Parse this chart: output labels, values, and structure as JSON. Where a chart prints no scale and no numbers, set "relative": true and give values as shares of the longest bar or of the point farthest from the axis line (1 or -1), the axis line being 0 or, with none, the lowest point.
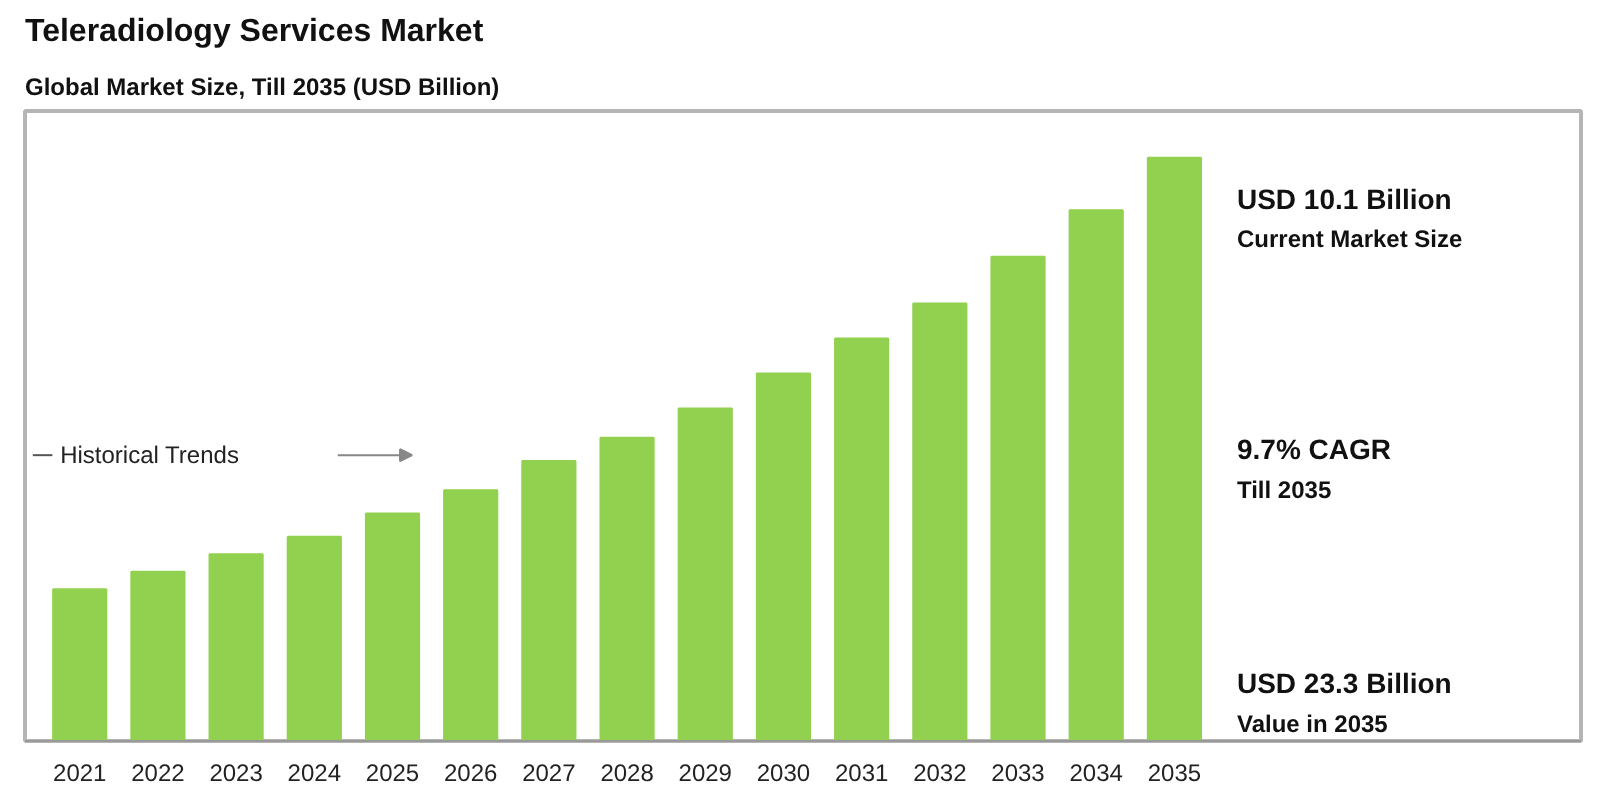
{
  "chart_data": {
    "type": "bar",
    "title": "Teleradiology Services Market",
    "subtitle": "Global Market Size, Till 2035 (USD Billion)",
    "categories": [
      "2021",
      "2022",
      "2023",
      "2024",
      "2025",
      "2026",
      "2027",
      "2028",
      "2029",
      "2030",
      "2031",
      "2032",
      "2033",
      "2034",
      "2035"
    ],
    "values": [
      0.26,
      0.29,
      0.32,
      0.35,
      0.39,
      0.43,
      0.48,
      0.52,
      0.57,
      0.63,
      0.69,
      0.75,
      0.83,
      0.91,
      1
    ],
    "color": "#92d050",
    "relative": true,
    "grid": false,
    "annotations": [
      "Historical Trends",
      "USD 10.1 Billion",
      "Current Market Size",
      "9.7% CAGR",
      "Till 2035",
      "USD 23.3 Billion",
      "Value in 2035"
    ]
  }
}
